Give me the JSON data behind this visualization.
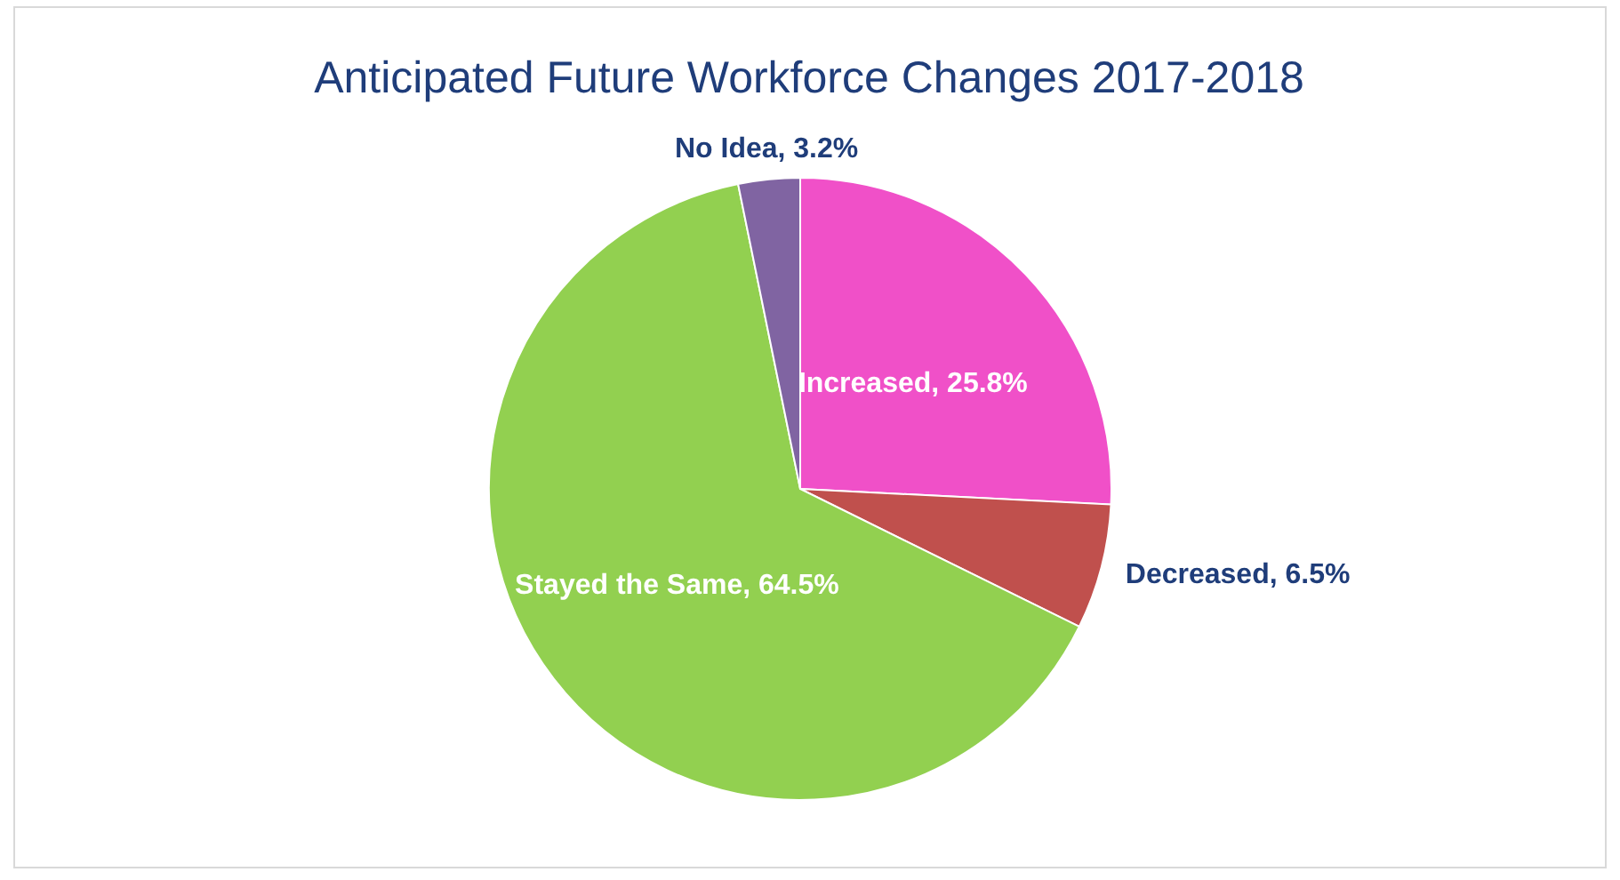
{
  "chart_data": {
    "type": "pie",
    "title": "Anticipated Future Workforce Changes 2017-2018",
    "categories": [
      "Increased",
      "Decreased",
      "Stayed the Same",
      "No Idea"
    ],
    "values": [
      25.8,
      6.5,
      64.5,
      3.2
    ],
    "value_labels": [
      "25.8%",
      "6.5%",
      "64.5%",
      "3.2%"
    ],
    "colors": [
      "#f050c8",
      "#c0504d",
      "#92d050",
      "#8064a2"
    ]
  }
}
